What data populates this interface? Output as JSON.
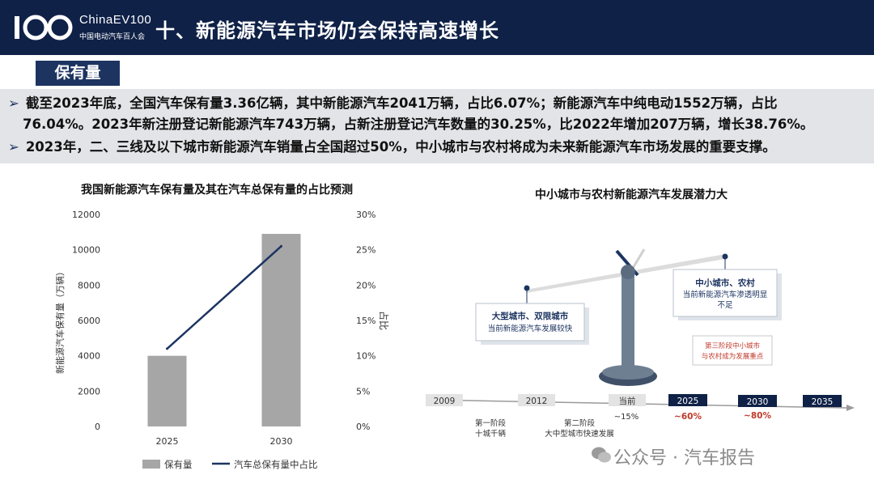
{
  "header": {
    "logo_number": "100",
    "logo_brand": "ChinaEV100",
    "logo_subtitle": "中国电动汽车百人会",
    "title": "十、新能源汽车市场仍会保持高速增长"
  },
  "section_tag": "保有量",
  "bullets": [
    {
      "arrow": "➢",
      "lines": [
        "截至2023年底，全国汽车保有量3.36亿辆，其中新能源汽车2041万辆，占比6.07%；新能源汽车中纯电动1552万辆，占比",
        "76.04%。2023年新注册登记新能源汽车743万辆，占新注册登记汽车数量的30.25%，比2022年增加207万辆，增长38.76%。"
      ]
    },
    {
      "arrow": "➢",
      "lines": [
        "2023年，二、三线及以下城市新能源汽车销量占全国超过50%，中小城市与农村将成为未来新能源汽车市场发展的重要支撑。"
      ]
    }
  ],
  "chart_data": {
    "type": "bar",
    "title": "我国新能源汽车保有量及其在汽车总保有量的占比预测",
    "categories": [
      "2025",
      "2030"
    ],
    "series": [
      {
        "name": "保有量",
        "type": "bar",
        "values": [
          4000,
          10900
        ],
        "color": "#a6a6a6"
      },
      {
        "name": "汽车总保有量中占比",
        "type": "line",
        "values": [
          11,
          25.5
        ],
        "color": "#1d3461"
      }
    ],
    "ylabel": "新能源汽车保有量（万辆）",
    "ylim": [
      0,
      12000
    ],
    "yticks": [
      "0",
      "2000",
      "4000",
      "6000",
      "8000",
      "10000",
      "12000"
    ],
    "y2label": "占比",
    "y2lim": [
      0,
      30
    ],
    "y2ticks": [
      "0%",
      "5%",
      "10%",
      "15%",
      "20%",
      "25%",
      "30%"
    ],
    "legend_position": "bottom",
    "grid": false
  },
  "diagram": {
    "title": "中小城市与农村新能源汽车发展潜力大",
    "big_city_label": "大型城市、双限城市",
    "big_city_desc": "当前新能源汽车发展较快",
    "small_city_label": "中小城市、农村",
    "small_city_desc_1": "当前新能源汽车渗透明显",
    "small_city_desc_2": "不足",
    "stage3_line1": "第三阶段中小城市",
    "stage3_line2": "与农村成为发展重点",
    "timeline": [
      "2009",
      "2012",
      "当前",
      "2025",
      "2030",
      "2035"
    ],
    "stage1_line1": "第一阶段",
    "stage1_line2": "十城千辆",
    "stage2_line1": "第二阶段",
    "stage2_line2": "大中型城市快速发展",
    "pct_current": "~15%",
    "pct_2025": "~60%",
    "pct_2030": "~80%"
  },
  "watermark": "公众号 · 汽车报告",
  "colors": {
    "navy": "#0f2147",
    "accent": "#1d3461",
    "red": "#c0392b",
    "gray_bar": "#a6a6a6"
  }
}
